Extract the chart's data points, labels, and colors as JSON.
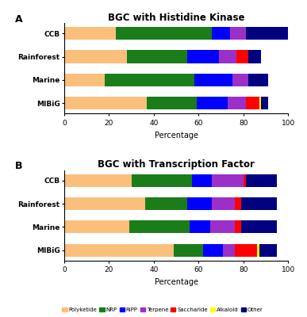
{
  "title_A": "BGC with Histidine Kinase",
  "title_B": "BGC with Transcription Factor",
  "xlabel": "Percentage",
  "categories": [
    "CCB",
    "Rainforest",
    "Marine",
    "MIBiG"
  ],
  "legend_labels": [
    "Polyketide",
    "NRP",
    "RiPP",
    "Terpene",
    "Saccharide",
    "Alkaloid",
    "Other"
  ],
  "colors": [
    "#FBBF7C",
    "#1A7D1A",
    "#0000FF",
    "#9B30C8",
    "#FF0000",
    "#FFFF00",
    "#000080"
  ],
  "chartA": {
    "CCB": [
      23,
      43,
      8,
      7,
      0,
      0,
      19
    ],
    "Rainforest": [
      28,
      27,
      14,
      8,
      5,
      0,
      6
    ],
    "Marine": [
      18,
      40,
      17,
      7,
      0,
      0,
      9
    ],
    "MIBiG": [
      37,
      22,
      14,
      8,
      6,
      1,
      3
    ]
  },
  "chartB": {
    "CCB": [
      30,
      27,
      9,
      14,
      1,
      0,
      14
    ],
    "Rainforest": [
      36,
      19,
      11,
      10,
      3,
      0,
      16
    ],
    "Marine": [
      29,
      27,
      9,
      11,
      3,
      0,
      16
    ],
    "MIBiG": [
      49,
      13,
      9,
      5,
      10,
      1,
      8
    ]
  },
  "label_A": "A",
  "label_B": "B",
  "xlim": [
    0,
    100
  ],
  "xticks": [
    0,
    20,
    40,
    60,
    80,
    100
  ]
}
